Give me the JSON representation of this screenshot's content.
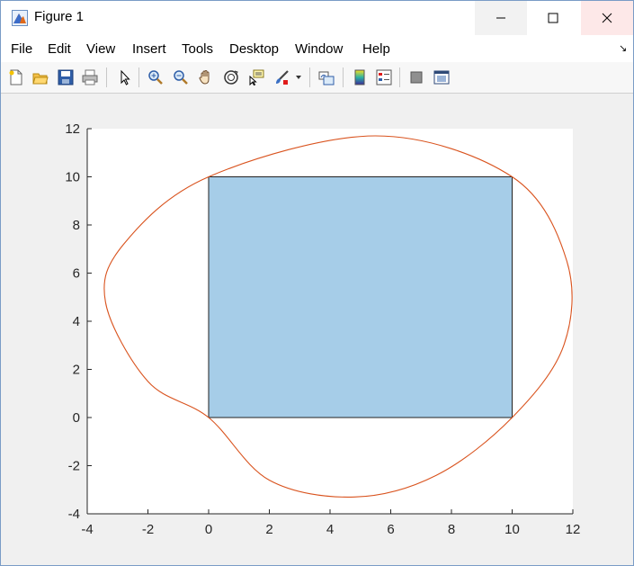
{
  "window": {
    "title": "Figure 1",
    "icon": "matlab-figure-icon"
  },
  "menu": {
    "items": [
      "File",
      "Edit",
      "View",
      "Insert",
      "Tools",
      "Desktop",
      "Window",
      "Help"
    ]
  },
  "toolbar": {
    "buttons": [
      "new-figure-icon",
      "open-file-icon",
      "save-icon",
      "print-icon",
      "select-arrow-icon",
      "zoom-in-icon",
      "zoom-out-icon",
      "pan-hand-icon",
      "rotate-3d-icon",
      "data-cursor-icon",
      "brush-icon",
      "brush-dropdown-icon",
      "link-plot-icon",
      "colorbar-icon",
      "legend-icon",
      "hide-plot-tools-icon",
      "show-plot-tools-icon"
    ]
  },
  "chart_data": {
    "type": "line",
    "title": "",
    "xlabel": "",
    "ylabel": "",
    "xlim": [
      -4,
      12
    ],
    "ylim": [
      -4,
      12
    ],
    "xticks": [
      -4,
      -2,
      0,
      2,
      4,
      6,
      8,
      10,
      12
    ],
    "yticks": [
      -4,
      -2,
      0,
      2,
      4,
      6,
      8,
      10,
      12
    ],
    "grid": false,
    "colors": {
      "rect_fill": "#a6cde8",
      "rect_edge": "#222222",
      "curve": "#d9531e"
    },
    "series": [
      {
        "kind": "filled-rectangle",
        "x": [
          0,
          10,
          10,
          0
        ],
        "y": [
          0,
          0,
          10,
          10
        ]
      },
      {
        "kind": "closed-curve",
        "x": [
          0,
          2.0,
          4.8,
          7.5,
          10,
          11.7,
          11.8,
          10,
          5.5,
          0,
          -2.8,
          -3.4,
          -2.0,
          0
        ],
        "y": [
          0,
          -2.6,
          -3.3,
          -2.4,
          0,
          3.0,
          6.5,
          10,
          11.7,
          10,
          7.2,
          4.8,
          1.5,
          0
        ]
      }
    ]
  }
}
